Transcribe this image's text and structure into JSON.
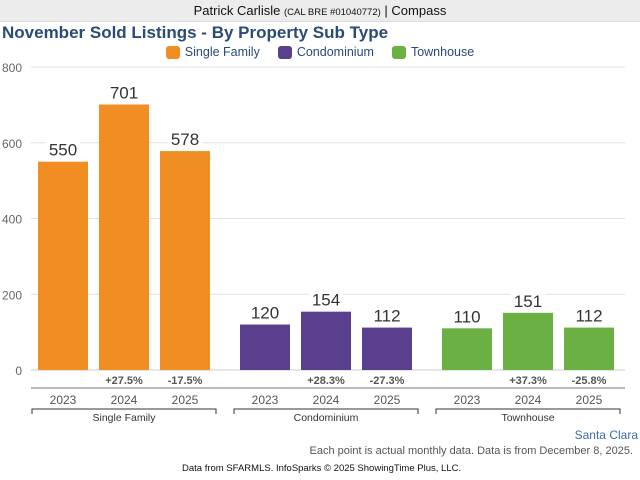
{
  "header": {
    "agent_name": "Patrick Carlisle",
    "license": "(CAL BRE #01040772)",
    "separator": "|",
    "brokerage": "Compass"
  },
  "footer": {
    "region": "Santa Clara",
    "note": "Each point is actual monthly data. Data is from December 8, 2025.",
    "source": "Data from SFARMLS. InfoSparks © 2025 ShowingTime Plus, LLC."
  },
  "chart_data": {
    "type": "bar",
    "title": "November Sold Listings - By Property Sub Type",
    "xlabel": "",
    "ylabel": "",
    "ylim": [
      0,
      800
    ],
    "yticks": [
      0,
      200,
      400,
      600,
      800
    ],
    "grid": true,
    "legend_position": "top-center",
    "groups": [
      {
        "name": "Single Family",
        "color": "#f08e24",
        "categories": [
          "2023",
          "2024",
          "2025"
        ],
        "values": [
          550,
          701,
          578
        ],
        "changes": [
          "",
          "+27.5%",
          "-17.5%"
        ]
      },
      {
        "name": "Condominium",
        "color": "#5a3f8f",
        "categories": [
          "2023",
          "2024",
          "2025"
        ],
        "values": [
          120,
          154,
          112
        ],
        "changes": [
          "",
          "+28.3%",
          "-27.3%"
        ]
      },
      {
        "name": "Townhouse",
        "color": "#6ab043",
        "categories": [
          "2023",
          "2024",
          "2025"
        ],
        "values": [
          110,
          151,
          112
        ],
        "changes": [
          "",
          "+37.3%",
          "-25.8%"
        ]
      }
    ]
  }
}
